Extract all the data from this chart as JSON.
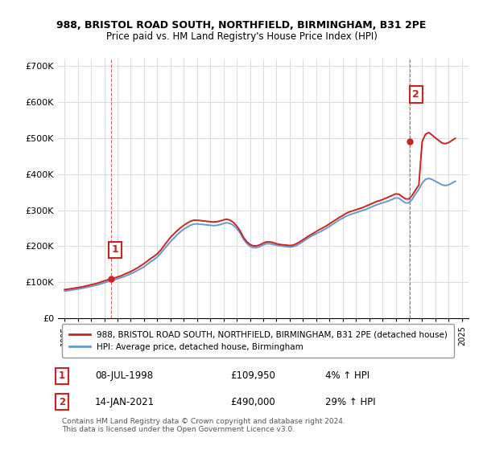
{
  "title": "988, BRISTOL ROAD SOUTH, NORTHFIELD, BIRMINGHAM, B31 2PE",
  "subtitle": "Price paid vs. HM Land Registry's House Price Index (HPI)",
  "hpi_color": "#6699cc",
  "price_color": "#cc2222",
  "annotation_box_color": "#cc2222",
  "background_color": "#ffffff",
  "grid_color": "#dddddd",
  "ylim": [
    0,
    720000
  ],
  "yticks": [
    0,
    100000,
    200000,
    300000,
    400000,
    500000,
    600000,
    700000
  ],
  "ytick_labels": [
    "£0",
    "£100K",
    "£200K",
    "£300K",
    "£400K",
    "£500K",
    "£600K",
    "£700K"
  ],
  "xlim_start": 1994.5,
  "xlim_end": 2025.5,
  "xticks": [
    1995,
    1996,
    1997,
    1998,
    1999,
    2000,
    2001,
    2002,
    2003,
    2004,
    2005,
    2006,
    2007,
    2008,
    2009,
    2010,
    2011,
    2012,
    2013,
    2014,
    2015,
    2016,
    2017,
    2018,
    2019,
    2020,
    2021,
    2022,
    2023,
    2024,
    2025
  ],
  "sale1_x": 1998.53,
  "sale1_y": 109950,
  "sale1_label": "1",
  "sale2_x": 2021.04,
  "sale2_y": 490000,
  "sale2_label": "2",
  "legend_line1": "988, BRISTOL ROAD SOUTH, NORTHFIELD, BIRMINGHAM, B31 2PE (detached house)",
  "legend_line2": "HPI: Average price, detached house, Birmingham",
  "table_row1_num": "1",
  "table_row1_date": "08-JUL-1998",
  "table_row1_price": "£109,950",
  "table_row1_hpi": "4% ↑ HPI",
  "table_row2_num": "2",
  "table_row2_date": "14-JAN-2021",
  "table_row2_price": "£490,000",
  "table_row2_hpi": "29% ↑ HPI",
  "footer": "Contains HM Land Registry data © Crown copyright and database right 2024.\nThis data is licensed under the Open Government Licence v3.0.",
  "hpi_years": [
    1995,
    1995.25,
    1995.5,
    1995.75,
    1996,
    1996.25,
    1996.5,
    1996.75,
    1997,
    1997.25,
    1997.5,
    1997.75,
    1998,
    1998.25,
    1998.5,
    1998.75,
    1999,
    1999.25,
    1999.5,
    1999.75,
    2000,
    2000.25,
    2000.5,
    2000.75,
    2001,
    2001.25,
    2001.5,
    2001.75,
    2002,
    2002.25,
    2002.5,
    2002.75,
    2003,
    2003.25,
    2003.5,
    2003.75,
    2004,
    2004.25,
    2004.5,
    2004.75,
    2005,
    2005.25,
    2005.5,
    2005.75,
    2006,
    2006.25,
    2006.5,
    2006.75,
    2007,
    2007.25,
    2007.5,
    2007.75,
    2008,
    2008.25,
    2008.5,
    2008.75,
    2009,
    2009.25,
    2009.5,
    2009.75,
    2010,
    2010.25,
    2010.5,
    2010.75,
    2011,
    2011.25,
    2011.5,
    2011.75,
    2012,
    2012.25,
    2012.5,
    2012.75,
    2013,
    2013.25,
    2013.5,
    2013.75,
    2014,
    2014.25,
    2014.5,
    2014.75,
    2015,
    2015.25,
    2015.5,
    2015.75,
    2016,
    2016.25,
    2016.5,
    2016.75,
    2017,
    2017.25,
    2017.5,
    2017.75,
    2018,
    2018.25,
    2018.5,
    2018.75,
    2019,
    2019.25,
    2019.5,
    2019.75,
    2020,
    2020.25,
    2020.5,
    2020.75,
    2021,
    2021.25,
    2021.5,
    2021.75,
    2022,
    2022.25,
    2022.5,
    2022.75,
    2023,
    2023.25,
    2023.5,
    2023.75,
    2024,
    2024.25,
    2024.5
  ],
  "hpi_values": [
    76000,
    77000,
    78500,
    80000,
    81500,
    83000,
    85000,
    87000,
    89000,
    91000,
    93000,
    96000,
    99000,
    102000,
    105000,
    107000,
    110000,
    113000,
    116000,
    120000,
    124000,
    128000,
    133000,
    138000,
    143000,
    150000,
    157000,
    163000,
    170000,
    180000,
    192000,
    202000,
    213000,
    222000,
    232000,
    240000,
    247000,
    253000,
    258000,
    261000,
    262000,
    261000,
    260000,
    259000,
    258000,
    257000,
    258000,
    260000,
    263000,
    265000,
    263000,
    258000,
    249000,
    237000,
    220000,
    208000,
    200000,
    196000,
    196000,
    199000,
    204000,
    207000,
    207000,
    205000,
    203000,
    201000,
    200000,
    199000,
    198000,
    199000,
    202000,
    207000,
    213000,
    219000,
    225000,
    230000,
    235000,
    239000,
    244000,
    249000,
    255000,
    261000,
    267000,
    273000,
    278000,
    283000,
    287000,
    290000,
    293000,
    296000,
    299000,
    302000,
    306000,
    310000,
    314000,
    317000,
    320000,
    323000,
    326000,
    330000,
    334000,
    333000,
    326000,
    320000,
    320000,
    330000,
    345000,
    358000,
    375000,
    385000,
    388000,
    385000,
    380000,
    375000,
    370000,
    368000,
    370000,
    375000,
    380000
  ],
  "price_years": [
    1995,
    1995.25,
    1995.5,
    1995.75,
    1996,
    1996.25,
    1996.5,
    1996.75,
    1997,
    1997.25,
    1997.5,
    1997.75,
    1998,
    1998.25,
    1998.5,
    1998.75,
    1999,
    1999.25,
    1999.5,
    1999.75,
    2000,
    2000.25,
    2000.5,
    2000.75,
    2001,
    2001.25,
    2001.5,
    2001.75,
    2002,
    2002.25,
    2002.5,
    2002.75,
    2003,
    2003.25,
    2003.5,
    2003.75,
    2004,
    2004.25,
    2004.5,
    2004.75,
    2005,
    2005.25,
    2005.5,
    2005.75,
    2006,
    2006.25,
    2006.5,
    2006.75,
    2007,
    2007.25,
    2007.5,
    2007.75,
    2008,
    2008.25,
    2008.5,
    2008.75,
    2009,
    2009.25,
    2009.5,
    2009.75,
    2010,
    2010.25,
    2010.5,
    2010.75,
    2011,
    2011.25,
    2011.5,
    2011.75,
    2012,
    2012.25,
    2012.5,
    2012.75,
    2013,
    2013.25,
    2013.5,
    2013.75,
    2014,
    2014.25,
    2014.5,
    2014.75,
    2015,
    2015.25,
    2015.5,
    2015.75,
    2016,
    2016.25,
    2016.5,
    2016.75,
    2017,
    2017.25,
    2017.5,
    2017.75,
    2018,
    2018.25,
    2018.5,
    2018.75,
    2019,
    2019.25,
    2019.5,
    2019.75,
    2020,
    2020.25,
    2020.5,
    2020.75,
    2021,
    2021.25,
    2021.5,
    2021.75,
    2022,
    2022.25,
    2022.5,
    2022.75,
    2023,
    2023.25,
    2023.5,
    2023.75,
    2024,
    2024.25,
    2024.5
  ],
  "price_values": [
    80000,
    81000,
    82500,
    84000,
    85500,
    87000,
    89000,
    91000,
    93500,
    95500,
    98000,
    101000,
    104000,
    107000,
    109950,
    112000,
    115000,
    118000,
    122000,
    126000,
    130000,
    135000,
    140000,
    146000,
    152000,
    159000,
    166000,
    172000,
    179000,
    189000,
    201000,
    213000,
    225000,
    234000,
    243000,
    251000,
    258000,
    264000,
    269000,
    272000,
    272000,
    271000,
    270000,
    269000,
    268000,
    267000,
    268000,
    270000,
    273000,
    275000,
    272000,
    266000,
    256000,
    243000,
    225000,
    213000,
    205000,
    201000,
    201000,
    204000,
    209000,
    212000,
    212000,
    210000,
    207000,
    205000,
    204000,
    203000,
    202000,
    203000,
    207000,
    212000,
    218000,
    224000,
    230000,
    235000,
    241000,
    246000,
    251000,
    256000,
    262000,
    268000,
    274000,
    280000,
    285000,
    291000,
    295000,
    298000,
    301000,
    304000,
    307000,
    311000,
    315000,
    319000,
    323000,
    326000,
    329000,
    333000,
    337000,
    341000,
    345000,
    344000,
    337000,
    331000,
    331000,
    341000,
    356000,
    370000,
    490000,
    510000,
    515000,
    508000,
    500000,
    493000,
    486000,
    484000,
    487000,
    493000,
    499000
  ]
}
